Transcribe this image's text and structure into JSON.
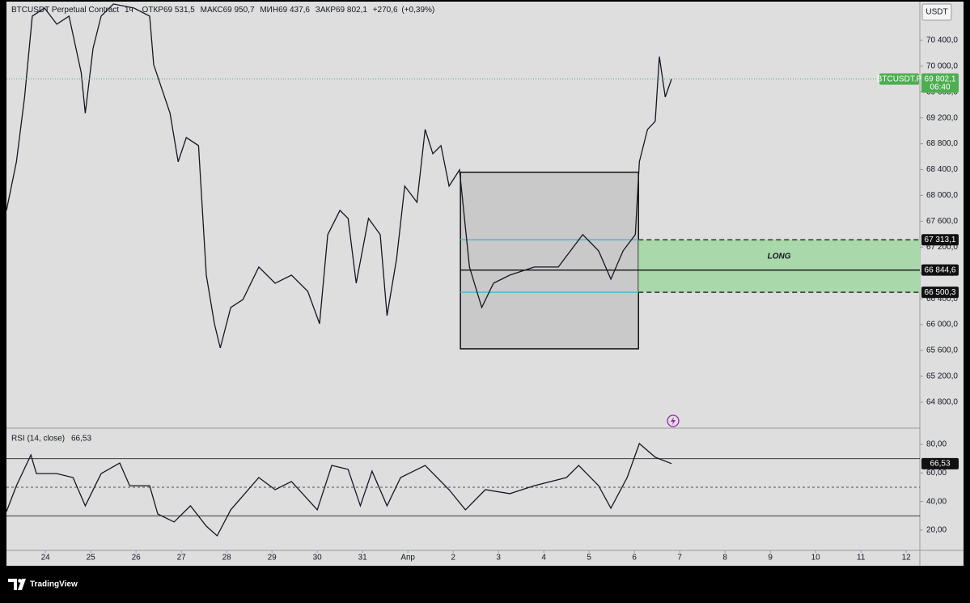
{
  "header": {
    "symbol": "BTCUSDT Perpetual Contract",
    "interval": "1ч",
    "open_key": "ОТКР",
    "open": {
      "value": 69531.5,
      "label": "69 531,5"
    },
    "high_key": "МАКС",
    "high": {
      "value": 69950.7,
      "label": "69 950,7"
    },
    "low_key": "МИН",
    "low": {
      "value": 69437.6,
      "label": "69 437,6"
    },
    "close_key": "ЗАКР",
    "close": {
      "value": 69802.1,
      "label": "69 802,1"
    },
    "change": {
      "value": 270.6,
      "label": "+270,6"
    },
    "change_pct": {
      "value": 0.39,
      "label": "(+0,39%)"
    }
  },
  "currency": "USDT",
  "brand": "TradingView",
  "chart_data": [
    {
      "type": "line",
      "name": "BTCUSDT.P",
      "color": "#131722",
      "x": [
        -0.86,
        -0.64,
        -0.46,
        -0.29,
        -0.02,
        0.25,
        0.52,
        0.79,
        0.88,
        1.05,
        1.23,
        1.5,
        1.95,
        2.3,
        2.39,
        2.57,
        2.75,
        2.93,
        3.11,
        3.38,
        3.55,
        3.73,
        3.86,
        4.09,
        4.36,
        4.71,
        5.07,
        5.43,
        5.79,
        6.05,
        6.23,
        6.5,
        6.68,
        6.86,
        7.13,
        7.39,
        7.54,
        7.75,
        7.93,
        8.2,
        8.38,
        8.55,
        8.73,
        8.91,
        9.14,
        9.36,
        9.63,
        9.89,
        10.25,
        10.79,
        11.32,
        11.59,
        11.86,
        12.21,
        12.48,
        12.75,
        13.02,
        13.11,
        13.29,
        13.46,
        13.55,
        13.68,
        13.82
      ],
      "values": [
        67769,
        68521,
        69523,
        70776,
        70901,
        70651,
        70776,
        69899,
        69272,
        70275,
        70776,
        70964,
        70901,
        70776,
        70024,
        69648,
        69272,
        68521,
        68896,
        68771,
        66766,
        66015,
        65639,
        66265,
        66390,
        66892,
        66641,
        66766,
        66516,
        66015,
        67393,
        67769,
        67643,
        66641,
        67643,
        67393,
        66140,
        67017,
        68145,
        67894,
        69022,
        68646,
        68771,
        68145,
        68395,
        66892,
        66265,
        66641,
        66766,
        66892,
        66892,
        67142,
        67393,
        67142,
        66704,
        67142,
        67393,
        68521,
        69022,
        69147,
        70149,
        69523,
        69802
      ],
      "xlim": [
        -0.86,
        19.3
      ],
      "xticks": [
        {
          "value": 0,
          "label": "24"
        },
        {
          "value": 1,
          "label": "25"
        },
        {
          "value": 2,
          "label": "26"
        },
        {
          "value": 3,
          "label": "27"
        },
        {
          "value": 4,
          "label": "28"
        },
        {
          "value": 5,
          "label": "29"
        },
        {
          "value": 6,
          "label": "30"
        },
        {
          "value": 7,
          "label": "31"
        },
        {
          "value": 8,
          "label": "Апр"
        },
        {
          "value": 9,
          "label": "2"
        },
        {
          "value": 10,
          "label": "3"
        },
        {
          "value": 11,
          "label": "4"
        },
        {
          "value": 12,
          "label": "5"
        },
        {
          "value": 13,
          "label": "6"
        },
        {
          "value": 14,
          "label": "7"
        },
        {
          "value": 15,
          "label": "8"
        },
        {
          "value": 16,
          "label": "9"
        },
        {
          "value": 17,
          "label": "10"
        },
        {
          "value": 18,
          "label": "11"
        },
        {
          "value": 19,
          "label": "12"
        }
      ],
      "ylim": [
        64410,
        71000
      ],
      "yticks": [
        {
          "value": 64800,
          "label": "64 800,0"
        },
        {
          "value": 65200,
          "label": "65 200,0"
        },
        {
          "value": 65600,
          "label": "65 600,0"
        },
        {
          "value": 66000,
          "label": "66 000,0"
        },
        {
          "value": 66400,
          "label": "66 400,0"
        },
        {
          "value": 66800,
          "label": "66 800,0"
        },
        {
          "value": 67200,
          "label": "67 200,0"
        },
        {
          "value": 67600,
          "label": "67 600,0"
        },
        {
          "value": 68000,
          "label": "68 000,0"
        },
        {
          "value": 68400,
          "label": "68 400,0"
        },
        {
          "value": 68800,
          "label": "68 800,0"
        },
        {
          "value": 69200,
          "label": "69 200,0"
        },
        {
          "value": 69600,
          "label": "69 600,0"
        },
        {
          "value": 70000,
          "label": "70 000,0"
        },
        {
          "value": 70400,
          "label": "70 400,0"
        }
      ],
      "last_price": {
        "value": 69802.1,
        "label": "69 802,1"
      },
      "countdown": "06:40",
      "price_color": "#4caf50",
      "range_box": {
        "x": [
          9.16,
          13.09
        ],
        "y": [
          65626,
          68358
        ]
      },
      "levels": [
        {
          "value": 67313.1,
          "label": "67 313,1"
        },
        {
          "value": 66844.6,
          "label": "66 844,6"
        },
        {
          "value": 66500.3,
          "label": "66 500,3"
        }
      ],
      "zone_label": "LONG",
      "zone_color": "#a9d8ab",
      "level_color": "#4fb9cf"
    },
    {
      "type": "line",
      "title": "RSI (14, close)",
      "color": "#131722",
      "x": [
        -0.86,
        -0.64,
        -0.32,
        -0.2,
        0.25,
        0.61,
        0.88,
        1.23,
        1.64,
        1.86,
        2.3,
        2.48,
        2.84,
        3.2,
        3.55,
        3.79,
        4.09,
        4.71,
        5.07,
        5.43,
        6,
        6.32,
        6.68,
        6.95,
        7.21,
        7.54,
        7.84,
        8.38,
        8.91,
        9.27,
        9.71,
        10.25,
        10.79,
        11.5,
        11.77,
        12.21,
        12.48,
        12.84,
        13.11,
        13.46,
        13.82
      ],
      "values": [
        33,
        51.1,
        72.6,
        59.6,
        59.6,
        56.8,
        37,
        59.6,
        67,
        51.1,
        51.1,
        31.3,
        25.7,
        37,
        22.8,
        16,
        34.2,
        56.8,
        48.3,
        54,
        34.2,
        65.3,
        62.5,
        37,
        61.3,
        37,
        56.8,
        65.3,
        48.3,
        34.2,
        48.3,
        45.5,
        51.1,
        56.8,
        65.3,
        51.1,
        35.3,
        56.8,
        80.6,
        71,
        66.53
      ],
      "ylim": [
        5.8,
        90.8
      ],
      "yticks": [
        {
          "value": 20,
          "label": "20,00"
        },
        {
          "value": 40,
          "label": "40,00"
        },
        {
          "value": 60,
          "label": "60,00"
        },
        {
          "value": 80,
          "label": "80,00"
        }
      ],
      "bands": [
        70,
        50,
        30
      ],
      "last_value": {
        "value": 66.53,
        "label": "66,53"
      }
    }
  ]
}
